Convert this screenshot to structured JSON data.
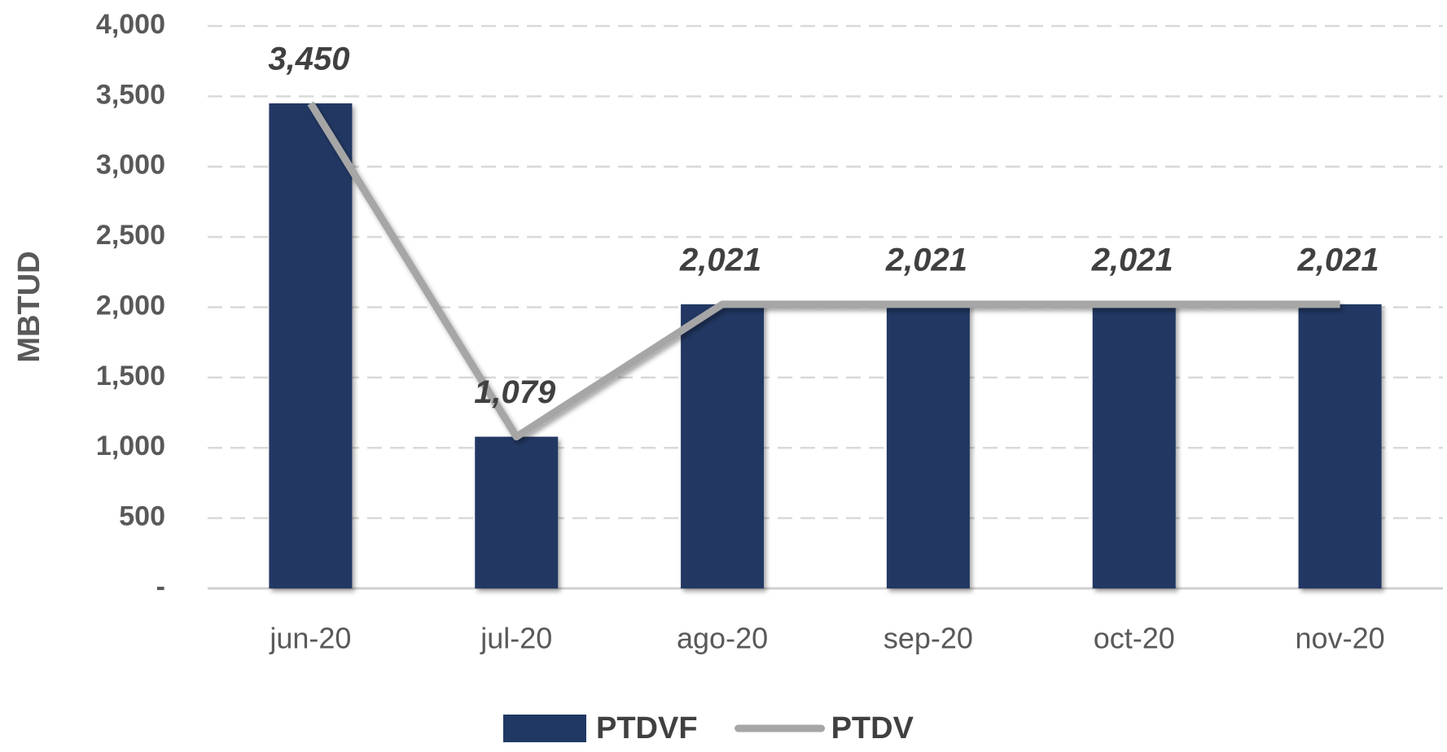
{
  "chart_data": {
    "type": "bar",
    "categories": [
      "jun-20",
      "jul-20",
      "ago-20",
      "sep-20",
      "oct-20",
      "nov-20"
    ],
    "series": [
      {
        "name": "PTDVF",
        "type": "bar",
        "color": "#203864",
        "values": [
          3450,
          1079,
          2021,
          2021,
          2021,
          2021
        ]
      },
      {
        "name": "PTDV",
        "type": "line",
        "color": "#a6a6a6",
        "values": [
          3450,
          1079,
          2021,
          2021,
          2021,
          2021
        ],
        "value_labels": [
          "3,450",
          "1,079",
          "2,021",
          "2,021",
          "2,021",
          "2,021"
        ]
      }
    ],
    "y_label": "MBTUD",
    "ylim": [
      0,
      4000
    ],
    "yticks": [
      {
        "value": 0,
        "label": "-"
      },
      500,
      {
        "value": 1000,
        "label": "1,000"
      },
      {
        "value": 1500,
        "label": "1,500"
      },
      {
        "value": 2000,
        "label": "2,000"
      },
      {
        "value": 2500,
        "label": "2,500"
      },
      {
        "value": 3000,
        "label": "3,000"
      },
      {
        "value": 3500,
        "label": "3,500"
      },
      {
        "value": 4000,
        "label": "4,000"
      }
    ],
    "grid": true,
    "legend": "bottom"
  }
}
